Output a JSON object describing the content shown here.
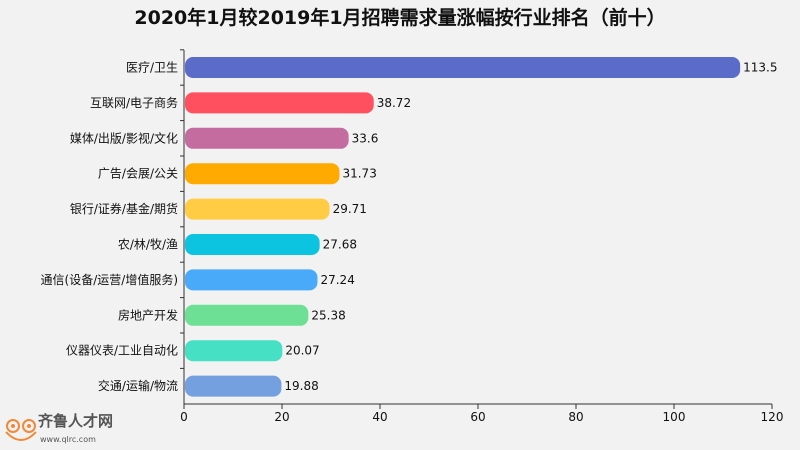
{
  "chart_data": {
    "type": "bar",
    "orientation": "horizontal",
    "title": "2020年1月较2019年1月招聘需求量涨幅按行业排名（前十）",
    "categories": [
      "医疗/卫生",
      "互联网/电子商务",
      "媒体/出版/影视/文化",
      "广告/会展/公关",
      "银行/证券/基金/期货",
      "农/林/牧/渔",
      "通信(设备/运营/增值服务)",
      "房地产开发",
      "仪器仪表/工业自动化",
      "交通/运输/物流"
    ],
    "values": [
      113.5,
      38.72,
      33.6,
      31.73,
      29.71,
      27.68,
      27.24,
      25.38,
      20.07,
      19.88
    ],
    "value_labels": [
      "113.5",
      "38.72",
      "33.6",
      "31.73",
      "29.71",
      "27.68",
      "27.24",
      "25.38",
      "20.07",
      "19.88"
    ],
    "colors": [
      "#5b6bc8",
      "#ff5060",
      "#c46b9f",
      "#ffaa00",
      "#ffcc44",
      "#0cc4e0",
      "#48aaf8",
      "#6ee096",
      "#46e0c4",
      "#74a0e0"
    ],
    "xlim": [
      0,
      120
    ],
    "xticks": [
      0,
      20,
      40,
      60,
      80,
      100,
      120
    ],
    "grid": false,
    "xlabel": "",
    "ylabel": ""
  },
  "watermark": {
    "name": "齐鲁人才网",
    "url": "www.qlrc.com"
  }
}
